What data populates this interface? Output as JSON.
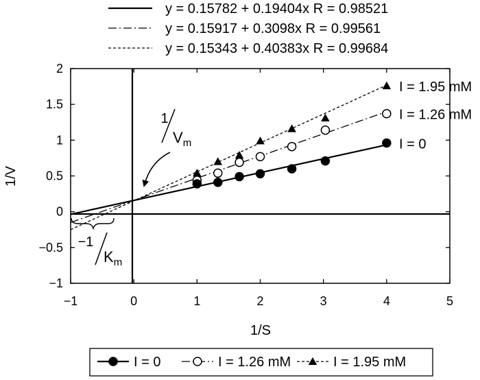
{
  "chart_data": {
    "type": "scatter",
    "xlabel": "1/S",
    "ylabel": "1/V",
    "xlim": [
      -1,
      5
    ],
    "ylim": [
      -1,
      2
    ],
    "xticks": [
      "−1",
      "0",
      "1",
      "2",
      "3",
      "4",
      "5"
    ],
    "yticks": [
      "−1",
      "−0.5",
      "0",
      "0.5",
      "1",
      "1.5",
      "2"
    ],
    "grid": false,
    "legend_position": "bottom",
    "series": [
      {
        "name": "I = 0",
        "marker": "filled-circle",
        "line_style": "solid",
        "end_label": "I = 0",
        "fit_equation": "y = 0.15782 + 0.19404x R = 0.98521",
        "intercept": 0.15782,
        "slope": 0.19404,
        "x": [
          1.0,
          1.33,
          1.67,
          2.0,
          2.5,
          3.03,
          4.0
        ],
        "y": [
          0.39,
          0.41,
          0.49,
          0.53,
          0.6,
          0.71,
          0.96
        ]
      },
      {
        "name": "I = 1.26 mM",
        "marker": "open-circle",
        "line_style": "dash-dot",
        "end_label": "I = 1.26 mM",
        "fit_equation": "y = 0.15917 + 0.3098x R = 0.99561",
        "intercept": 0.15917,
        "slope": 0.3098,
        "x": [
          1.0,
          1.33,
          1.67,
          2.0,
          2.5,
          3.03,
          4.0
        ],
        "y": [
          0.44,
          0.54,
          0.69,
          0.77,
          0.91,
          1.14,
          1.37
        ]
      },
      {
        "name": "I = 1.95 mM",
        "marker": "filled-triangle",
        "line_style": "dashed",
        "end_label": "I = 1.95 mM",
        "fit_equation": "y = 0.15343 + 0.40383x R = 0.99684",
        "intercept": 0.15343,
        "slope": 0.40383,
        "x": [
          1.0,
          1.33,
          1.67,
          2.0,
          2.5,
          3.03,
          4.0
        ],
        "y": [
          0.54,
          0.7,
          0.79,
          0.99,
          1.16,
          1.31,
          1.76
        ]
      }
    ],
    "annotations": {
      "vm_numerator": "1",
      "vm_denominator": "V",
      "vm_subscript": "m",
      "km_numerator": "−1",
      "km_denominator": "K",
      "km_subscript": "m"
    }
  }
}
